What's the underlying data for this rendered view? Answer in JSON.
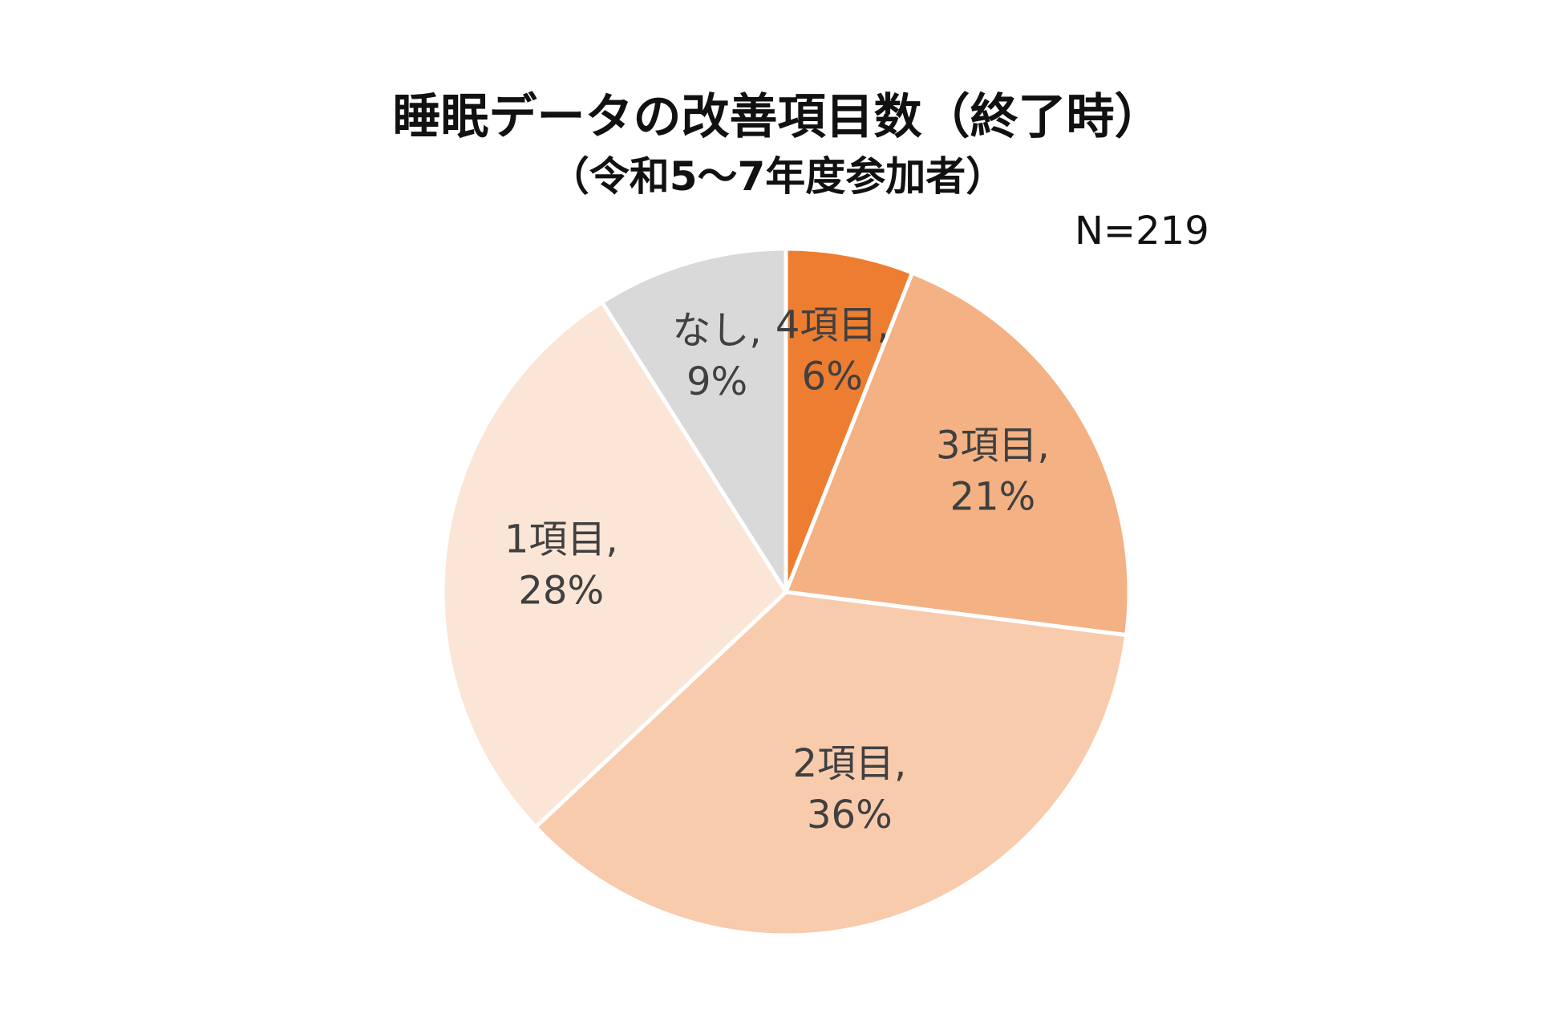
{
  "chart_data": {
    "type": "pie",
    "title": "睡眠データの改善項目数（終了時）",
    "subtitle": "（令和5～7年度参加者）",
    "note": "N=219",
    "slices": [
      {
        "label": "4項目",
        "value": 6,
        "display": "6%",
        "color": "#ED7D31"
      },
      {
        "label": "3項目",
        "value": 21,
        "display": "21%",
        "color": "#F4B183"
      },
      {
        "label": "2項目",
        "value": 36,
        "display": "36%",
        "color": "#F8CBAD"
      },
      {
        "label": "1項目",
        "value": 28,
        "display": "28%",
        "color": "#FBE5D6"
      },
      {
        "label": "なし",
        "value": 9,
        "display": "9%",
        "color": "#D9D9D9"
      }
    ],
    "label_separator": ",",
    "start": "12 o'clock",
    "direction": "clockwise"
  }
}
